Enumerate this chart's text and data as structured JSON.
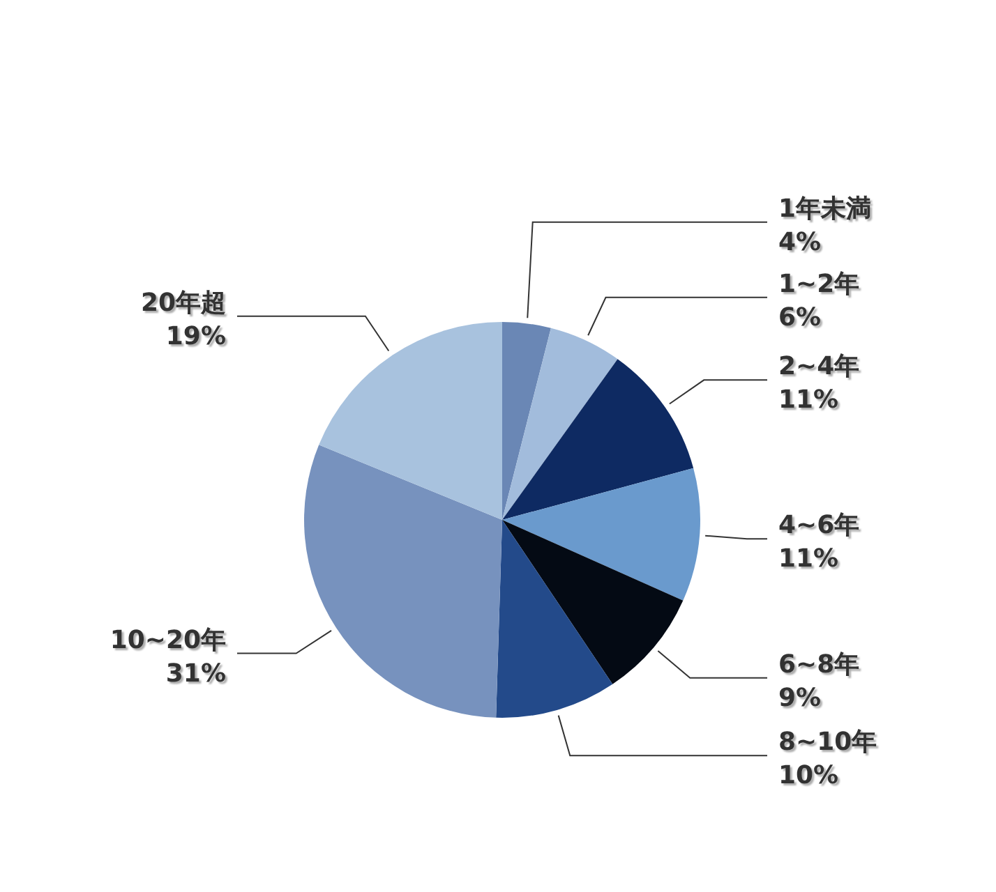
{
  "chart_data": {
    "type": "pie",
    "categories": [
      "1年未満",
      "1~2年",
      "2~4年",
      "4~6年",
      "6~8年",
      "8~10年",
      "10~20年",
      "20年超"
    ],
    "values": [
      4,
      6,
      11,
      11,
      9,
      10,
      31,
      19
    ],
    "value_labels": [
      "4%",
      "6%",
      "11%",
      "11%",
      "9%",
      "10%",
      "31%",
      "19%"
    ],
    "colors": [
      "#6a87b5",
      "#a2bcdc",
      "#0e2a62",
      "#6a9acd",
      "#040a14",
      "#234a8a",
      "#7792be",
      "#a8c2de"
    ]
  }
}
